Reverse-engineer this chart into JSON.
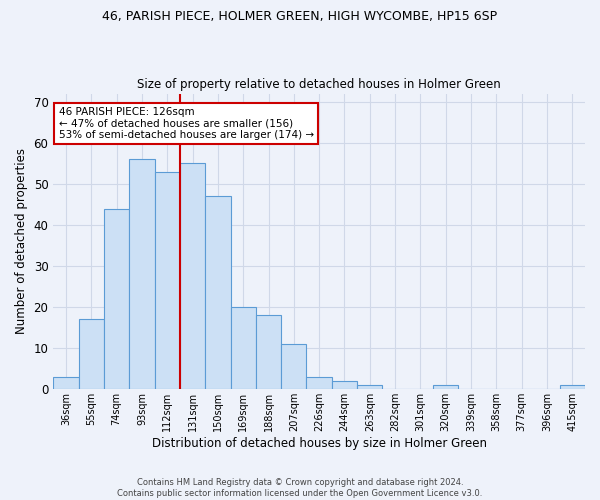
{
  "title": "46, PARISH PIECE, HOLMER GREEN, HIGH WYCOMBE, HP15 6SP",
  "subtitle": "Size of property relative to detached houses in Holmer Green",
  "xlabel": "Distribution of detached houses by size in Holmer Green",
  "ylabel": "Number of detached properties",
  "categories": [
    "36sqm",
    "55sqm",
    "74sqm",
    "93sqm",
    "112sqm",
    "131sqm",
    "150sqm",
    "169sqm",
    "188sqm",
    "207sqm",
    "226sqm",
    "244sqm",
    "263sqm",
    "282sqm",
    "301sqm",
    "320sqm",
    "339sqm",
    "358sqm",
    "377sqm",
    "396sqm",
    "415sqm"
  ],
  "values": [
    3,
    17,
    44,
    56,
    53,
    55,
    47,
    20,
    18,
    11,
    3,
    2,
    1,
    0,
    0,
    1,
    0,
    0,
    0,
    0,
    1
  ],
  "bar_color": "#cce0f5",
  "bar_edge_color": "#5b9bd5",
  "grid_color": "#d0d8e8",
  "background_color": "#eef2fa",
  "marker_label": "46 PARISH PIECE: 126sqm",
  "annotation_line1": "← 47% of detached houses are smaller (156)",
  "annotation_line2": "53% of semi-detached houses are larger (174) →",
  "annotation_box_color": "#ffffff",
  "annotation_box_edge": "#cc0000",
  "vline_color": "#cc0000",
  "vline_x": 4.5,
  "ylim": [
    0,
    72
  ],
  "yticks": [
    0,
    10,
    20,
    30,
    40,
    50,
    60,
    70
  ],
  "footer1": "Contains HM Land Registry data © Crown copyright and database right 2024.",
  "footer2": "Contains public sector information licensed under the Open Government Licence v3.0."
}
